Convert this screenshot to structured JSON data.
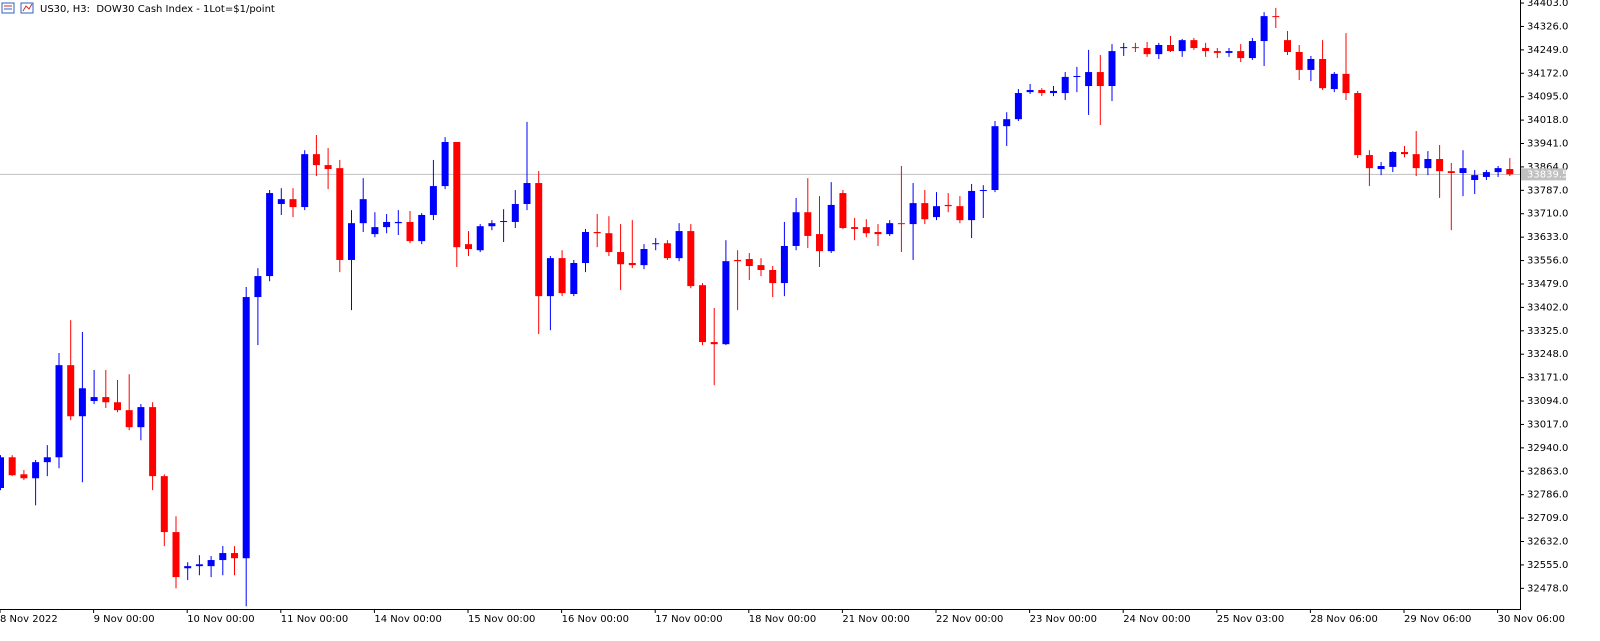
{
  "chart_data": {
    "type": "candlestick",
    "title": "US30, H3:  DOW30 Cash Index - 1Lot=$1/point",
    "up_color": "#0000ff",
    "down_color": "#ff0000",
    "grid": false,
    "categories": [
      "8 Nov 2022",
      null,
      null,
      null,
      null,
      null,
      null,
      null,
      "9 Nov 00:00",
      null,
      null,
      null,
      null,
      null,
      null,
      null,
      "10 Nov 00:00",
      null,
      null,
      null,
      null,
      null,
      null,
      null,
      "11 Nov 00:00",
      null,
      null,
      null,
      null,
      null,
      null,
      null,
      "14 Nov 00:00",
      null,
      null,
      null,
      null,
      null,
      null,
      null,
      "15 Nov 00:00",
      null,
      null,
      null,
      null,
      null,
      null,
      null,
      "16 Nov 00:00",
      null,
      null,
      null,
      null,
      null,
      null,
      null,
      "17 Nov 00:00",
      null,
      null,
      null,
      null,
      null,
      null,
      null,
      "18 Nov 00:00",
      null,
      null,
      null,
      null,
      null,
      null,
      null,
      "21 Nov 00:00",
      null,
      null,
      null,
      null,
      null,
      null,
      null,
      "22 Nov 00:00",
      null,
      null,
      null,
      null,
      null,
      null,
      null,
      "23 Nov 00:00",
      null,
      null,
      null,
      null,
      null,
      null,
      null,
      "24 Nov 00:00",
      null,
      null,
      null,
      null,
      null,
      null,
      null,
      "25 Nov 03:00",
      null,
      null,
      null,
      null,
      null,
      null,
      null,
      "28 Nov 06:00",
      null,
      null,
      null,
      null,
      null,
      null,
      null,
      "29 Nov 06:00",
      null,
      null,
      null,
      null,
      null,
      null,
      null,
      "30 Nov 06:00",
      null
    ],
    "open": [
      32808,
      32909,
      32853,
      32840,
      32893,
      32909,
      33212,
      33044,
      33094,
      33107,
      33090,
      33064,
      33008,
      33074,
      32847,
      32663,
      32544,
      32551,
      32551,
      32571,
      32594,
      32577,
      33436,
      33505,
      33742,
      33758,
      33732,
      33906,
      33870,
      33860,
      33558,
      33679,
      33643,
      33666,
      33679,
      33683,
      33620,
      33706,
      33801,
      33946,
      33610,
      33590,
      33669,
      33683,
      33683,
      33742,
      33811,
      33439,
      33564,
      33446,
      33548,
      33650,
      33646,
      33584,
      33548,
      33541,
      33610,
      33613,
      33564,
      33653,
      33475,
      33288,
      33281,
      33558,
      33561,
      33541,
      33525,
      33482,
      33604,
      33715,
      33643,
      33587,
      33778,
      33666,
      33666,
      33650,
      33643,
      33679,
      33676,
      33745,
      33699,
      33739,
      33735,
      33689,
      33785,
      33788,
      33998,
      34021,
      34110,
      34117,
      34107,
      34107,
      34160,
      34130,
      34176,
      34130,
      34255,
      34258,
      34255,
      34235,
      34265,
      34245,
      34281,
      34255,
      34245,
      34239,
      34245,
      34222,
      34278,
      34360,
      34281,
      34242,
      34183,
      34219,
      34120,
      34170,
      34107,
      33903,
      33857,
      33864,
      33913,
      33906,
      33860,
      33890,
      33850,
      33844,
      33821,
      33831,
      33847,
      33857
    ],
    "high": [
      32916,
      32916,
      32867,
      32900,
      32949,
      33252,
      33360,
      33321,
      33196,
      33196,
      33163,
      33182,
      33084,
      33090,
      32853,
      32715,
      32564,
      32587,
      32584,
      32617,
      32617,
      33469,
      33531,
      33788,
      33794,
      33794,
      33919,
      33969,
      33926,
      33887,
      33722,
      33827,
      33715,
      33709,
      33722,
      33719,
      33712,
      33887,
      33962,
      33946,
      33653,
      33676,
      33689,
      33725,
      33788,
      34012,
      33850,
      33571,
      33590,
      33558,
      33660,
      33709,
      33702,
      33676,
      33689,
      33610,
      33630,
      33623,
      33679,
      33676,
      33482,
      33400,
      33623,
      33590,
      33581,
      33564,
      33538,
      33683,
      33762,
      33827,
      33768,
      33814,
      33788,
      33696,
      33692,
      33676,
      33689,
      33867,
      33811,
      33788,
      33781,
      33778,
      33768,
      33808,
      33804,
      34015,
      34044,
      34120,
      34137,
      34123,
      34130,
      34176,
      34193,
      34249,
      34232,
      34268,
      34272,
      34272,
      34275,
      34272,
      34295,
      34285,
      34288,
      34272,
      34255,
      34255,
      34268,
      34288,
      34373,
      34387,
      34311,
      34265,
      34229,
      34281,
      34176,
      34304,
      34114,
      33919,
      33880,
      33916,
      33933,
      33982,
      33916,
      33936,
      33877,
      33919,
      33854,
      33854,
      33867,
      33893
    ],
    "low": [
      32801,
      32847,
      32834,
      32751,
      32847,
      32873,
      33031,
      32827,
      33084,
      33071,
      33057,
      32998,
      32965,
      32801,
      32617,
      32478,
      32505,
      32521,
      32515,
      32521,
      32521,
      32419,
      33278,
      33488,
      33706,
      33699,
      33722,
      33834,
      33791,
      33518,
      33393,
      33650,
      33633,
      33646,
      33640,
      33613,
      33610,
      33689,
      33791,
      33535,
      33571,
      33584,
      33656,
      33617,
      33663,
      33722,
      33314,
      33327,
      33439,
      33439,
      33518,
      33600,
      33571,
      33459,
      33531,
      33528,
      33590,
      33558,
      33554,
      33465,
      33278,
      33146,
      33278,
      33393,
      33492,
      33505,
      33436,
      33439,
      33590,
      33597,
      33535,
      33581,
      33660,
      33623,
      33633,
      33604,
      33637,
      33584,
      33558,
      33676,
      33689,
      33715,
      33679,
      33630,
      33696,
      33781,
      33933,
      34015,
      34104,
      34097,
      34097,
      34084,
      34110,
      34035,
      34002,
      34081,
      34229,
      34242,
      34226,
      34219,
      34242,
      34226,
      34249,
      34226,
      34222,
      34226,
      34209,
      34216,
      34196,
      34321,
      34232,
      34150,
      34146,
      34117,
      34110,
      34084,
      33893,
      33801,
      33837,
      33847,
      33896,
      33834,
      33837,
      33762,
      33656,
      33768,
      33775,
      33821,
      33831,
      33834
    ],
    "close": [
      32909,
      32850,
      32840,
      32893,
      32909,
      33212,
      33044,
      33136,
      33107,
      33090,
      33064,
      33008,
      33074,
      32847,
      32663,
      32515,
      32551,
      32557,
      32571,
      32594,
      32577,
      33436,
      33505,
      33778,
      33758,
      33732,
      33906,
      33870,
      33857,
      33558,
      33679,
      33758,
      33666,
      33683,
      33683,
      33620,
      33706,
      33801,
      33946,
      33600,
      33594,
      33669,
      33679,
      33686,
      33742,
      33811,
      33439,
      33564,
      33449,
      33548,
      33650,
      33646,
      33584,
      33544,
      33541,
      33594,
      33613,
      33564,
      33653,
      33472,
      33288,
      33281,
      33554,
      33554,
      33538,
      33525,
      33482,
      33604,
      33715,
      33637,
      33587,
      33739,
      33663,
      33660,
      33646,
      33643,
      33679,
      33676,
      33745,
      33692,
      33735,
      33735,
      33689,
      33785,
      33788,
      33998,
      34021,
      34107,
      34117,
      34107,
      34114,
      34160,
      34163,
      34176,
      34130,
      34245,
      34258,
      34255,
      34235,
      34265,
      34245,
      34281,
      34255,
      34245,
      34239,
      34245,
      34222,
      34278,
      34360,
      34357,
      34242,
      34183,
      34219,
      34123,
      34170,
      34107,
      33903,
      33860,
      33867,
      33913,
      33906,
      33860,
      33890,
      33850,
      33844,
      33860,
      33837,
      33847,
      33860,
      33839.5
    ],
    "current_price": 33839.5,
    "ylim": [
      32410,
      34413
    ],
    "yticks": [
      {
        "value": 34403,
        "label": "34403.0"
      },
      {
        "value": 34326,
        "label": "34326.0"
      },
      {
        "value": 34249,
        "label": "34249.0"
      },
      {
        "value": 34172,
        "label": "34172.0"
      },
      {
        "value": 34095,
        "label": "34095.0"
      },
      {
        "value": 34018,
        "label": "34018.0"
      },
      {
        "value": 33941,
        "label": "33941.0"
      },
      {
        "value": 33864,
        "label": "33864.0"
      },
      {
        "value": 33787,
        "label": "33787.0"
      },
      {
        "value": 33710,
        "label": "33710.0"
      },
      {
        "value": 33633,
        "label": "33633.0"
      },
      {
        "value": 33556,
        "label": "33556.0"
      },
      {
        "value": 33479,
        "label": "33479.0"
      },
      {
        "value": 33402,
        "label": "33402.0"
      },
      {
        "value": 33325,
        "label": "33325.0"
      },
      {
        "value": 33248,
        "label": "33248.0"
      },
      {
        "value": 33171,
        "label": "33171.0"
      },
      {
        "value": 33094,
        "label": "33094.0"
      },
      {
        "value": 33017,
        "label": "33017.0"
      },
      {
        "value": 32940,
        "label": "32940.0"
      },
      {
        "value": 32863,
        "label": "32863.0"
      },
      {
        "value": 32786,
        "label": "32786.0"
      },
      {
        "value": 32709,
        "label": "32709.0"
      },
      {
        "value": 32632,
        "label": "32632.0"
      },
      {
        "value": 32555,
        "label": "32555.0"
      },
      {
        "value": 32478,
        "label": "32478.0"
      }
    ]
  }
}
